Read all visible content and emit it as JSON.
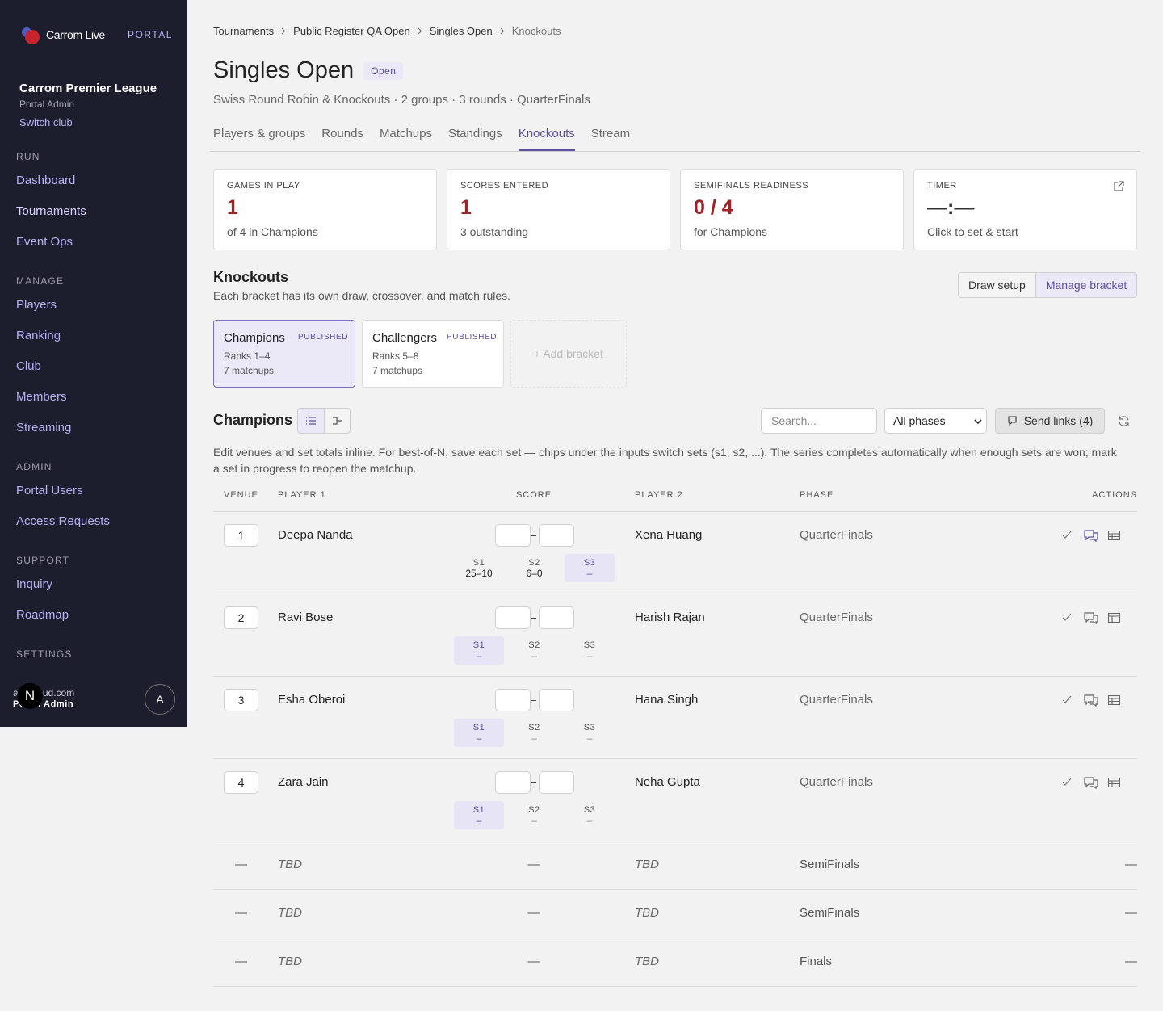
{
  "sidebar": {
    "brand": "Carrom Live",
    "portal": "PORTAL",
    "club": "Carrom Premier League",
    "role": "Portal Admin",
    "switch_club": "Switch club",
    "active_item": "Tournaments",
    "sections": [
      {
        "title": "RUN",
        "items": [
          "Dashboard",
          "Tournaments",
          "Event Ops"
        ]
      },
      {
        "title": "MANAGE",
        "items": [
          "Players",
          "Ranking",
          "Club",
          "Members",
          "Streaming"
        ]
      },
      {
        "title": "ADMIN",
        "items": [
          "Portal Users",
          "Access Requests"
        ]
      },
      {
        "title": "SUPPORT",
        "items": [
          "Inquiry",
          "Roadmap"
        ]
      },
      {
        "title": "SETTINGS",
        "items": []
      }
    ],
    "user": {
      "email": "a@icloud.com",
      "role": "Portal Admin",
      "badge": "N",
      "avatar": "A"
    }
  },
  "breadcrumb": [
    "Tournaments",
    "Public Register QA Open",
    "Singles Open",
    "Knockouts"
  ],
  "header": {
    "title": "Singles Open",
    "status": "Open",
    "subtitle": "Swiss Round Robin & Knockouts · 2 groups · 3 rounds · QuarterFinals"
  },
  "tabs": {
    "items": [
      "Players & groups",
      "Rounds",
      "Matchups",
      "Standings",
      "Knockouts",
      "Stream"
    ],
    "active": "Knockouts"
  },
  "stats": [
    {
      "label": "GAMES IN PLAY",
      "value": "1",
      "sub": "of 4 in Champions"
    },
    {
      "label": "SCORES ENTERED",
      "value": "1",
      "sub": "3 outstanding"
    },
    {
      "label": "SEMIFINALS READINESS",
      "value": "0 / 4",
      "sub": "for Champions"
    },
    {
      "label": "TIMER",
      "value": "—:—",
      "sub": "Click to set & start"
    }
  ],
  "knockouts": {
    "title": "Knockouts",
    "description": "Each bracket has its own draw, crossover, and match rules.",
    "buttons": [
      "Draw setup",
      "Manage bracket"
    ],
    "brackets": [
      {
        "name": "Champions",
        "status": "PUBLISHED",
        "ranks": "Ranks 1–4",
        "matchups": "7 matchups",
        "selected": true
      },
      {
        "name": "Challengers",
        "status": "PUBLISHED",
        "ranks": "Ranks 5–8",
        "matchups": "7 matchups",
        "selected": false
      }
    ],
    "add_bracket": "+ Add bracket"
  },
  "bracket_view": {
    "title": "Champions",
    "search_placeholder": "Search...",
    "phase_filter": "All phases",
    "send_links": "Send links (4)",
    "help": "Edit venues and set totals inline. For best-of-N, save each set — chips under the inputs switch sets (s1, s2, ...). The series completes automatically when enough sets are won; mark a set in progress to reopen the matchup."
  },
  "table": {
    "headers": [
      "VENUE",
      "PLAYER 1",
      "SCORE",
      "PLAYER 2",
      "PHASE",
      "ACTIONS"
    ],
    "matches": [
      {
        "venue": "1",
        "player1": "Deepa Nanda",
        "player2": "Xena Huang",
        "phase": "QuarterFinals",
        "sets": [
          {
            "label": "S1",
            "score": "25–10"
          },
          {
            "label": "S2",
            "score": "6–0"
          },
          {
            "label": "S3",
            "score": "–",
            "active": true
          }
        ]
      },
      {
        "venue": "2",
        "player1": "Ravi Bose",
        "player2": "Harish Rajan",
        "phase": "QuarterFinals",
        "sets": [
          {
            "label": "S1",
            "score": "–",
            "active": true
          },
          {
            "label": "S2",
            "score": "–"
          },
          {
            "label": "S3",
            "score": "–"
          }
        ]
      },
      {
        "venue": "3",
        "player1": "Esha Oberoi",
        "player2": "Hana Singh",
        "phase": "QuarterFinals",
        "sets": [
          {
            "label": "S1",
            "score": "–",
            "active": true
          },
          {
            "label": "S2",
            "score": "–"
          },
          {
            "label": "S3",
            "score": "–"
          }
        ]
      },
      {
        "venue": "4",
        "player1": "Zara Jain",
        "player2": "Neha Gupta",
        "phase": "QuarterFinals",
        "sets": [
          {
            "label": "S1",
            "score": "–",
            "active": true
          },
          {
            "label": "S2",
            "score": "–"
          },
          {
            "label": "S3",
            "score": "–"
          }
        ]
      }
    ],
    "pending": [
      {
        "venue": "—",
        "player1": "TBD",
        "score": "—",
        "player2": "TBD",
        "phase": "SemiFinals",
        "actions": "—"
      },
      {
        "venue": "—",
        "player1": "TBD",
        "score": "—",
        "player2": "TBD",
        "phase": "SemiFinals",
        "actions": "—"
      },
      {
        "venue": "—",
        "player1": "TBD",
        "score": "—",
        "player2": "TBD",
        "phase": "Finals",
        "actions": "—"
      }
    ]
  }
}
